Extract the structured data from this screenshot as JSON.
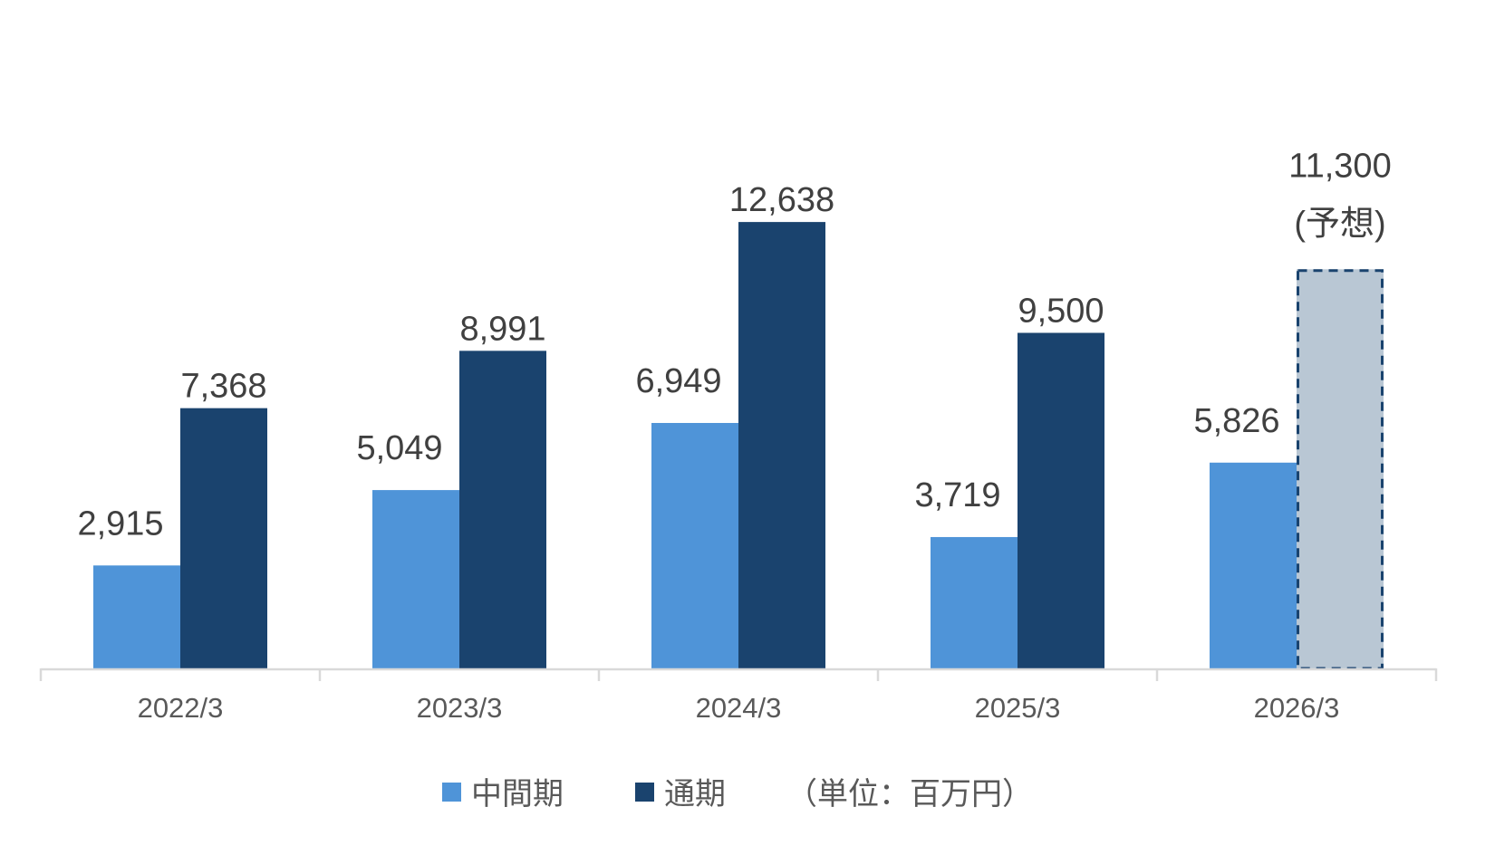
{
  "chart_data": {
    "type": "bar",
    "categories": [
      "2022/3",
      "2023/3",
      "2024/3",
      "2025/3",
      "2026/3"
    ],
    "series": [
      {
        "name": "中間期",
        "values": [
          2915,
          5049,
          6949,
          3719,
          5826
        ],
        "color": "#4F94D8"
      },
      {
        "name": "通期",
        "values": [
          7368,
          8991,
          12638,
          9500,
          11300
        ],
        "color": "#1A436E"
      }
    ],
    "data_labels": {
      "series0": [
        "2,915",
        "5,049",
        "6,949",
        "3,719",
        "5,826"
      ],
      "series1": [
        "7,368",
        "8,991",
        "12,638",
        "9,500",
        "11,300"
      ]
    },
    "forecast": {
      "category": "2026/3",
      "series": "通期",
      "note": "(予想)",
      "fill": "#B9C7D4",
      "border": "#1A436E",
      "border_style": "dashed"
    },
    "unit_note": "（単位：百万円）",
    "legend_position": "bottom",
    "grid": false,
    "ylim": [
      0,
      15000
    ]
  }
}
